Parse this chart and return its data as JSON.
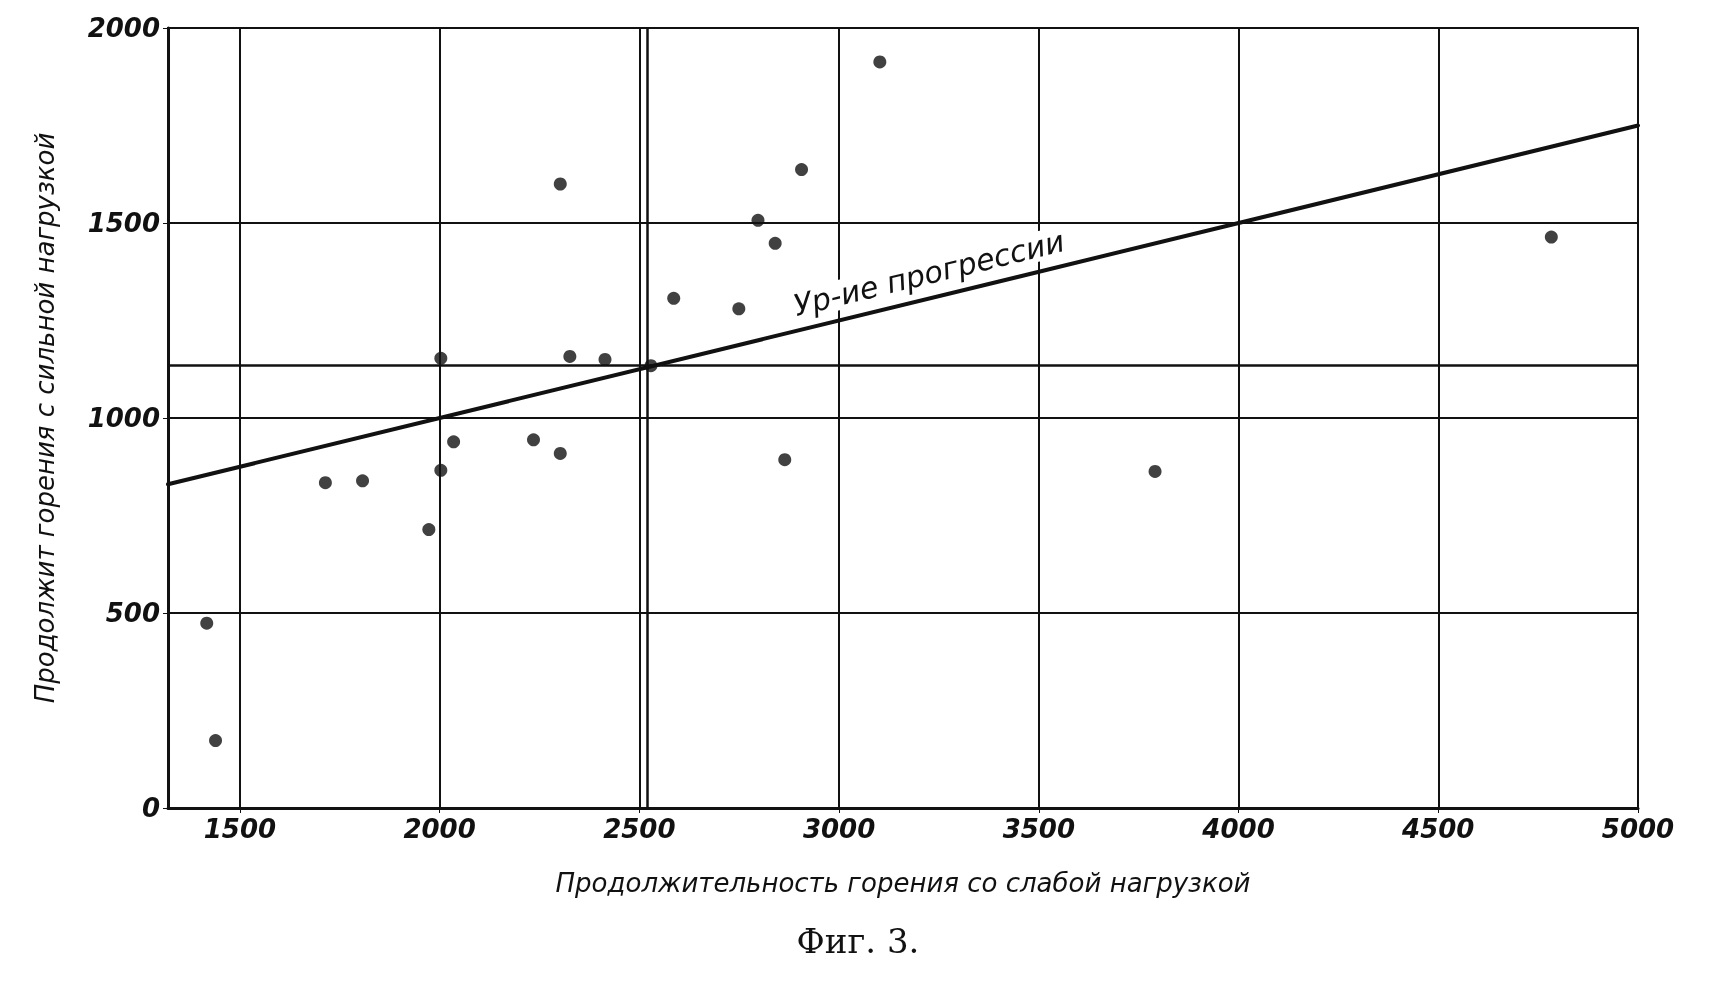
{
  "chart_data": {
    "type": "scatter",
    "xlabel": "Продолжительность горения со слабой нагрузкой",
    "ylabel": "Продолжит горения с сильной нагрузкой",
    "annotations": [
      "Ур-ие прогрессии",
      "Фиг. 3."
    ],
    "series": [
      {
        "marker": "circle",
        "color": "#111111",
        "x": [
          1417,
          1439,
          1714,
          1807,
          1973,
          2003,
          2003,
          2035,
          2235,
          2302,
          2302,
          2326,
          2414,
          2529,
          2586,
          2749,
          2797,
          2840,
          2864,
          2906,
          3102,
          3791,
          4783
        ],
        "values": [
          474,
          173,
          834,
          839,
          714,
          1153,
          866,
          939,
          944,
          1600,
          909,
          1158,
          1150,
          1134,
          1307,
          1280,
          1507,
          1448,
          893,
          1637,
          1913,
          863,
          1464
        ]
      },
      {
        "type": "line",
        "marker": "none",
        "color": "#111111",
        "x": [
          1320,
          5000
        ],
        "values": [
          830,
          1750
        ]
      }
    ],
    "ref_lines": [
      {
        "axis": "x",
        "value": 2520
      },
      {
        "axis": "y",
        "value": 1134
      }
    ],
    "xlim": [
      1320,
      5000
    ],
    "xticks": [
      1500,
      2000,
      2500,
      3000,
      3500,
      4000,
      4500,
      5000
    ],
    "ylim": [
      0,
      2000
    ],
    "yticks": [
      0,
      500,
      1000,
      1500,
      2000
    ],
    "grid": true,
    "line_style": "solid"
  }
}
